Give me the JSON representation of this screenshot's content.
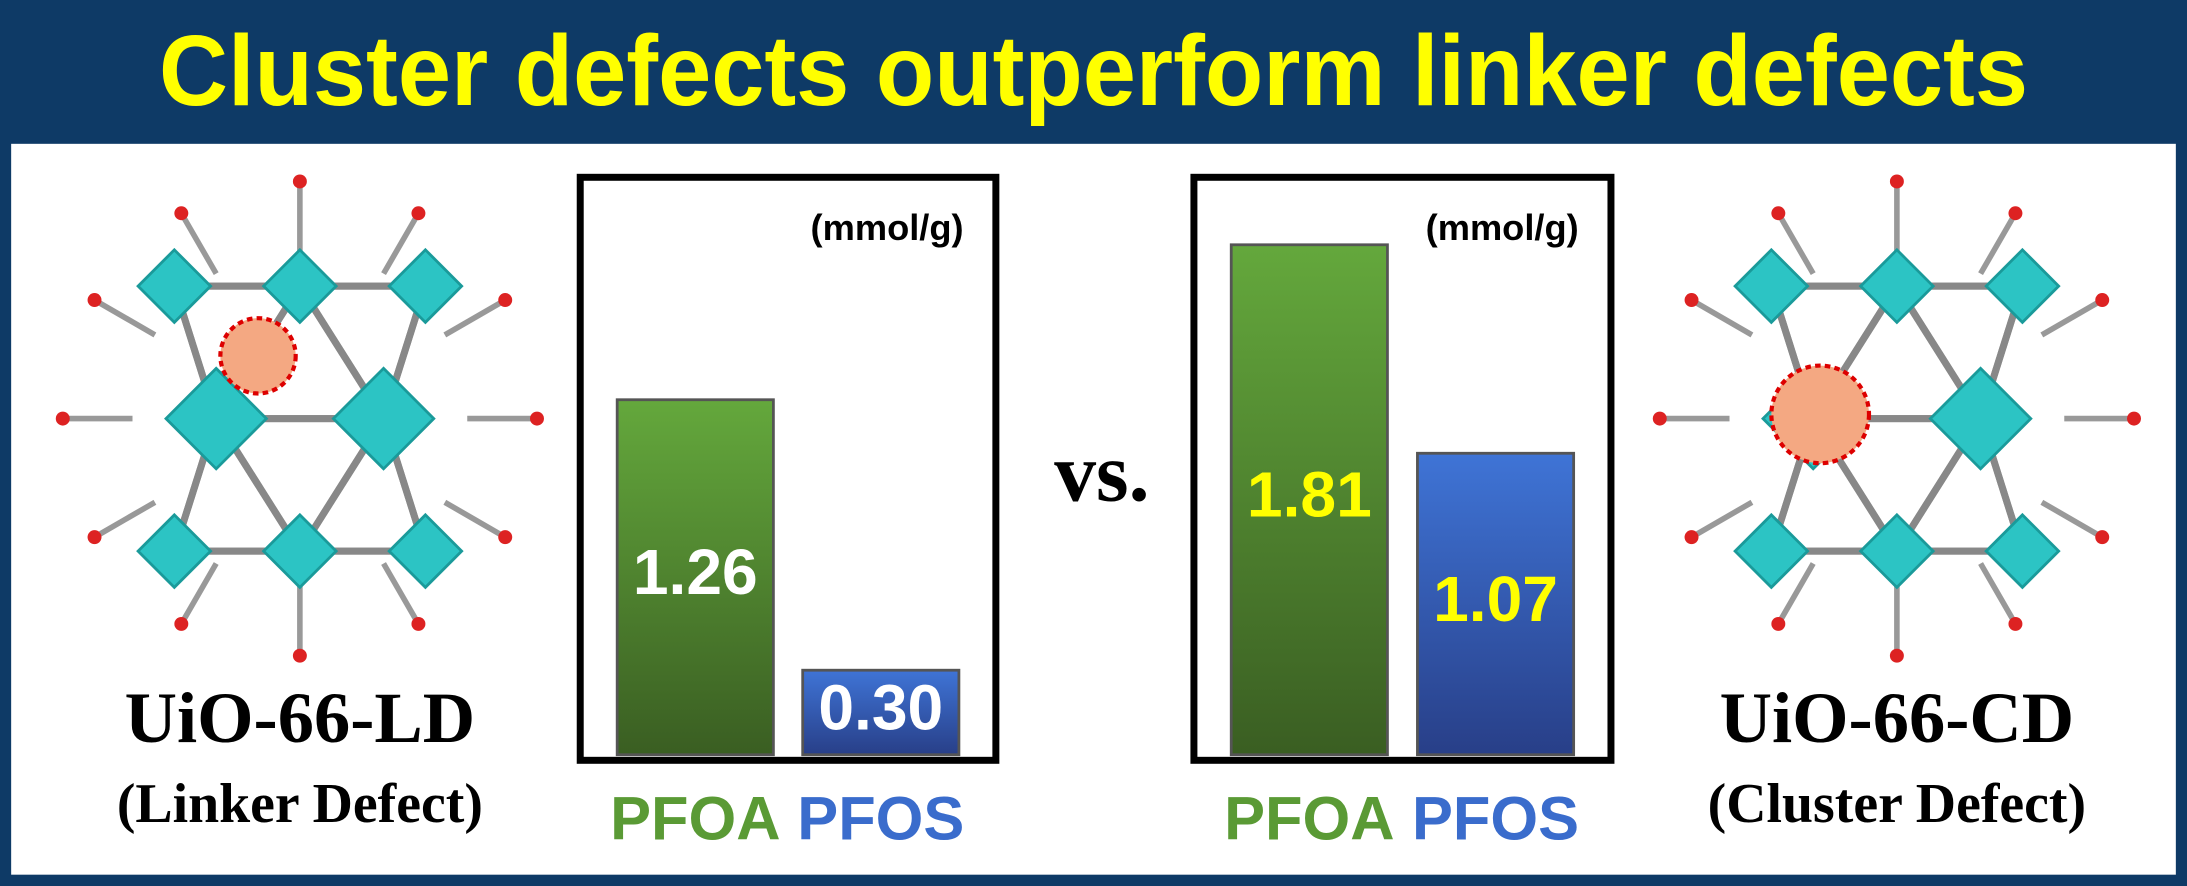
{
  "title": "Cluster defects outperform linker defects",
  "separator": "vs.",
  "materials": [
    {
      "name": "UiO-66-LD",
      "description": "(Linker Defect)"
    },
    {
      "name": "UiO-66-CD",
      "description": "(Cluster Defect)"
    }
  ],
  "chart_data": [
    {
      "type": "bar",
      "unit": "(mmol/g)",
      "categories": [
        "PFOA",
        "PFOS"
      ],
      "values": [
        1.26,
        0.3
      ],
      "value_labels": [
        "1.26",
        "0.30"
      ],
      "colors": [
        "#5a9a35",
        "#3a6ccc"
      ],
      "value_label_color": "#ffffff",
      "ylim": [
        0,
        2
      ]
    },
    {
      "type": "bar",
      "unit": "(mmol/g)",
      "categories": [
        "PFOA",
        "PFOS"
      ],
      "values": [
        1.81,
        1.07
      ],
      "value_labels": [
        "1.81",
        "1.07"
      ],
      "colors": [
        "#5a9a35",
        "#3a6ccc"
      ],
      "value_label_color": "#ffff00",
      "ylim": [
        0,
        2
      ]
    }
  ]
}
